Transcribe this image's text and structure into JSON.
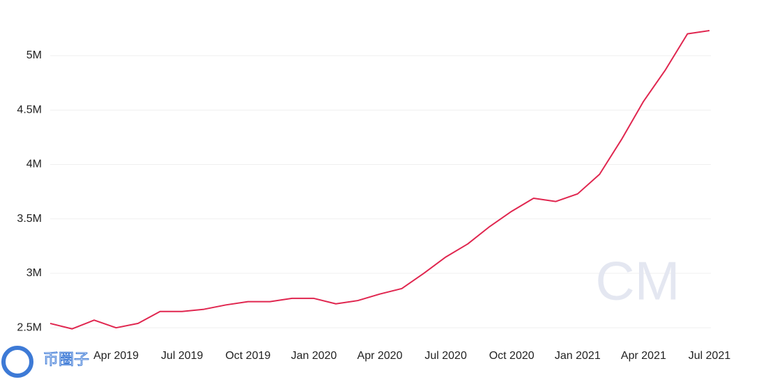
{
  "chart_data": {
    "type": "line",
    "x": [
      "2019-01",
      "2019-02",
      "2019-03",
      "2019-04",
      "2019-05",
      "2019-06",
      "2019-07",
      "2019-08",
      "2019-09",
      "2019-10",
      "2019-11",
      "2019-12",
      "2020-01",
      "2020-02",
      "2020-03",
      "2020-04",
      "2020-05",
      "2020-06",
      "2020-07",
      "2020-08",
      "2020-09",
      "2020-10",
      "2020-11",
      "2020-12",
      "2021-01",
      "2021-02",
      "2021-03",
      "2021-04",
      "2021-05",
      "2021-06",
      "2021-07"
    ],
    "series": [
      {
        "color": "#e0264f",
        "values": [
          2540000,
          2490000,
          2570000,
          2500000,
          2540000,
          2650000,
          2650000,
          2670000,
          2710000,
          2740000,
          2740000,
          2770000,
          2770000,
          2720000,
          2750000,
          2810000,
          2860000,
          3000000,
          3150000,
          3270000,
          3430000,
          3570000,
          3690000,
          3660000,
          3730000,
          3910000,
          4230000,
          4580000,
          4870000,
          5200000,
          5230000
        ]
      }
    ],
    "xlim": [
      "2019-01",
      "2021-07"
    ],
    "xticks": [
      {
        "value": "2019-04",
        "label": "Apr 2019"
      },
      {
        "value": "2019-07",
        "label": "Jul 2019"
      },
      {
        "value": "2019-10",
        "label": "Oct 2019"
      },
      {
        "value": "2020-01",
        "label": "Jan 2020"
      },
      {
        "value": "2020-04",
        "label": "Apr 2020"
      },
      {
        "value": "2020-07",
        "label": "Jul 2020"
      },
      {
        "value": "2020-10",
        "label": "Oct 2020"
      },
      {
        "value": "2021-01",
        "label": "Jan 2021"
      },
      {
        "value": "2021-04",
        "label": "Apr 2021"
      },
      {
        "value": "2021-07",
        "label": "Jul 2021"
      }
    ],
    "ylim": [
      2450000,
      5300000
    ],
    "yticks": [
      {
        "value": 2500000,
        "label": "2.5M"
      },
      {
        "value": 3000000,
        "label": "3M"
      },
      {
        "value": 3500000,
        "label": "3.5M"
      },
      {
        "value": 4000000,
        "label": "4M"
      },
      {
        "value": 4500000,
        "label": "4.5M"
      },
      {
        "value": 5000000,
        "label": "5M"
      }
    ],
    "grid": true,
    "logo": "CM",
    "watermark": "币圈子"
  }
}
